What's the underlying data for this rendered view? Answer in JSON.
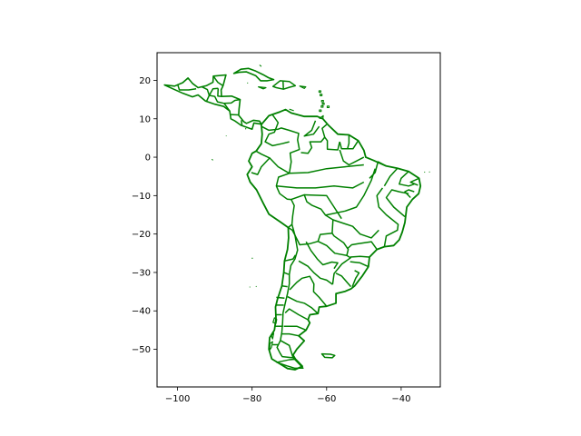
{
  "figure": {
    "background": "#ffffff",
    "line_color": "#008000",
    "axes_color": "#000000"
  },
  "chart_data": {
    "type": "map",
    "region": "South America and Central America with Caribbean",
    "style": "polygon outlines of countries and sub-national administrative boundaries",
    "xlim": [
      -105.5,
      -29.5
    ],
    "ylim": [
      -59.8,
      27.2
    ],
    "x_ticks": [
      -100,
      -80,
      -60,
      -40
    ],
    "y_ticks": [
      -50,
      -40,
      -30,
      -20,
      -10,
      0,
      10,
      20
    ],
    "x_tick_labels": [
      "−100",
      "−80",
      "−60",
      "−40"
    ],
    "y_tick_labels": [
      "−50",
      "−40",
      "−30",
      "−20",
      "−10",
      "0",
      "10",
      "20"
    ],
    "grid": false
  }
}
